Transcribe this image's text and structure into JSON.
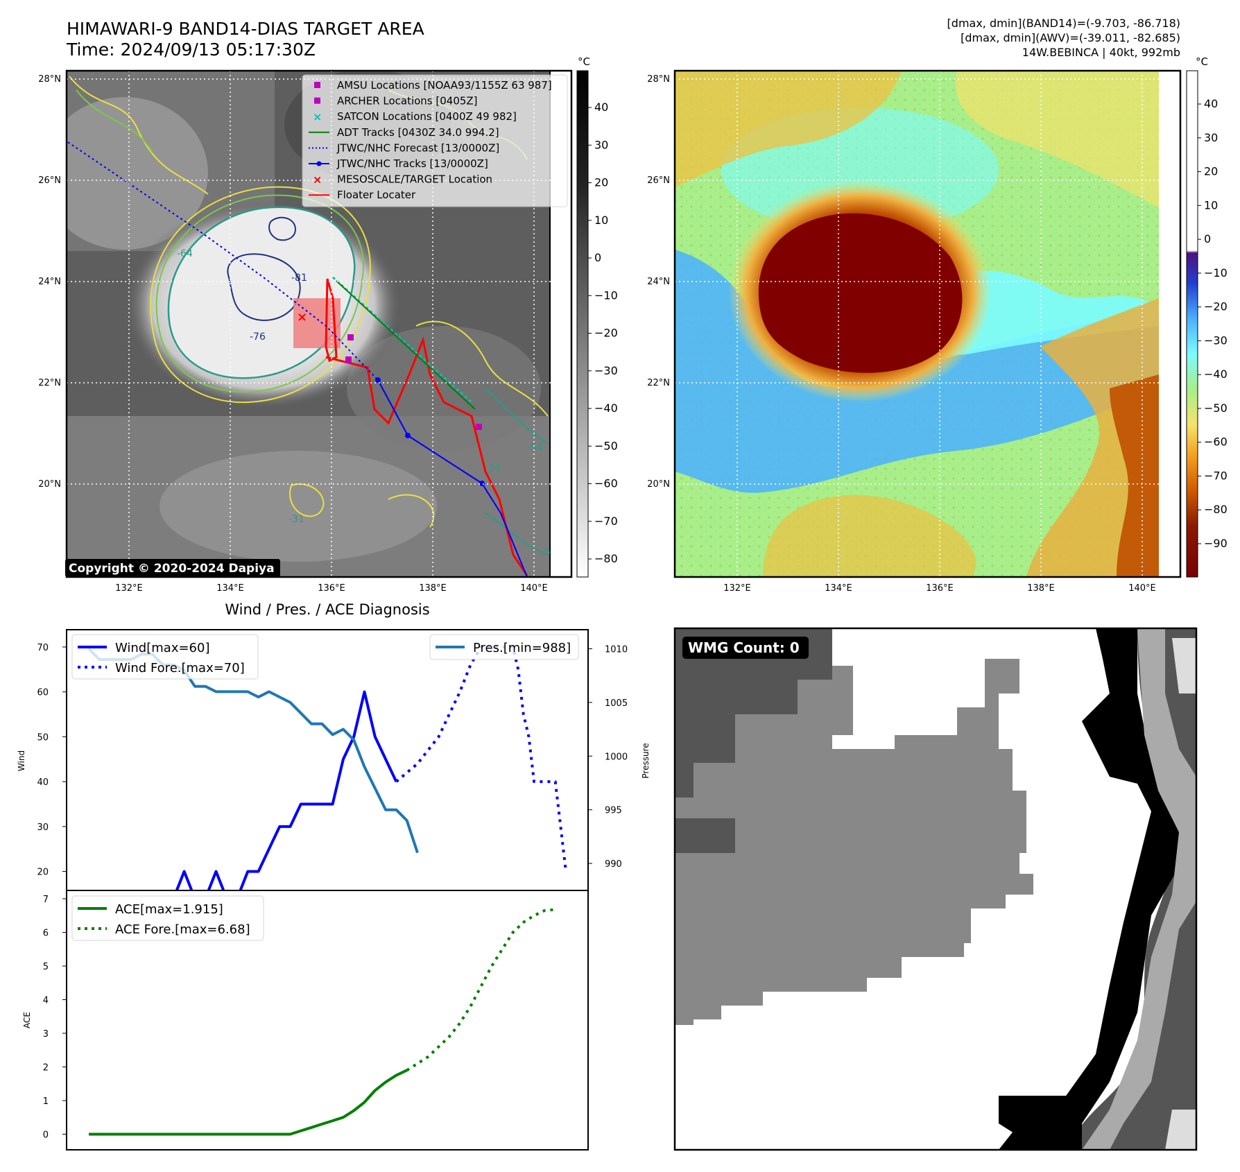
{
  "header": {
    "title_line1": "HIMAWARI-9 BAND14-DIAS TARGET AREA",
    "title_line2": "Time: 2024/09/13 05:17:30Z",
    "right_line1": "[dmax, dmin](BAND14)=(-9.703, -86.718)",
    "right_line2": "[dmax, dmin](AWV)=(-39.011, -82.685)",
    "right_line3": "14W.BEBINCA | 40kt, 992mb"
  },
  "ir_panel": {
    "copyright": "Copyright © 2020-2024 Dapiya",
    "lat_labels": [
      "28°N",
      "26°N",
      "24°N",
      "22°N",
      "20°N"
    ],
    "lon_labels": [
      "132°E",
      "134°E",
      "136°E",
      "138°E",
      "140°E"
    ],
    "contour_labels": [
      "-64",
      "-81",
      "-76",
      "-31",
      "-54",
      "-31",
      "-54"
    ],
    "colorbar": {
      "unit": "°C",
      "ticks": [
        "40",
        "30",
        "20",
        "10",
        "0",
        "−10",
        "−20",
        "−30",
        "−40",
        "−50",
        "−60",
        "−70",
        "−80"
      ]
    },
    "legend": [
      {
        "label": "AMSU Locations [NOAA93/1155Z 63 987]",
        "marker": "square",
        "color": "#c000c0"
      },
      {
        "label": "ARCHER Locations [0405Z]",
        "marker": "square",
        "color": "#c000c0"
      },
      {
        "label": "SATCON Locations [0400Z 49 982]",
        "marker": "x",
        "color": "#00c0c0"
      },
      {
        "label": "ADT Tracks [0430Z 34.0 994.2]",
        "marker": "line",
        "color": "#008000"
      },
      {
        "label": "JTWC/NHC Forecast [13/0000Z]",
        "marker": "dotted",
        "color": "#0000ff"
      },
      {
        "label": "JTWC/NHC Tracks [13/0000Z]",
        "marker": "line-dot",
        "color": "#0000ff"
      },
      {
        "label": "MESOSCALE/TARGET Location",
        "marker": "x",
        "color": "#ff0000"
      },
      {
        "label": "Floater Locater",
        "marker": "line",
        "color": "#ff0000"
      }
    ]
  },
  "awv_panel": {
    "lat_labels": [
      "28°N",
      "26°N",
      "24°N",
      "22°N",
      "20°N"
    ],
    "lon_labels": [
      "132°E",
      "134°E",
      "136°E",
      "138°E",
      "140°E"
    ],
    "colorbar": {
      "unit": "°C",
      "ticks": [
        "40",
        "30",
        "20",
        "10",
        "0",
        "−10",
        "−20",
        "−30",
        "−40",
        "−50",
        "−60",
        "−70",
        "−80",
        "−90"
      ]
    }
  },
  "wmg_panel": {
    "badge": "WMG Count: 0"
  },
  "chart_data": [
    {
      "type": "line",
      "title": "Wind / Pres. / ACE Diagnosis",
      "ylabel": "Wind",
      "y2label": "Pressure",
      "ylim": [
        17,
        72
      ],
      "y2lim": [
        988,
        1011
      ],
      "yticks": [
        "20",
        "30",
        "40",
        "50",
        "60",
        "70"
      ],
      "y2ticks": [
        "990",
        "995",
        "1000",
        "1005",
        "1010"
      ],
      "series": [
        {
          "name": "Wind[max=60]",
          "color": "#0000ff",
          "style": "solid",
          "values": [
            [
              0,
              14
            ],
            [
              8,
              14
            ],
            [
              9,
              20
            ],
            [
              10,
              14
            ],
            [
              11,
              14
            ],
            [
              12,
              20
            ],
            [
              13,
              14
            ],
            [
              14,
              14
            ],
            [
              15,
              20
            ],
            [
              16,
              20
            ],
            [
              17,
              25
            ],
            [
              18,
              30
            ],
            [
              19,
              30
            ],
            [
              20,
              35
            ],
            [
              21,
              35
            ],
            [
              22,
              35
            ],
            [
              23,
              35
            ],
            [
              24,
              45
            ],
            [
              25,
              50
            ],
            [
              26,
              60
            ],
            [
              27,
              50
            ],
            [
              28,
              45
            ],
            [
              29,
              40
            ]
          ]
        },
        {
          "name": "Wind Fore.[max=70]",
          "color": "#0000ff",
          "style": "dotted",
          "values": [
            [
              29,
              40
            ],
            [
              30,
              42
            ],
            [
              31,
              44
            ],
            [
              32,
              47
            ],
            [
              33,
              50
            ],
            [
              34,
              55
            ],
            [
              35,
              60
            ],
            [
              36,
              66
            ],
            [
              37,
              70
            ],
            [
              38,
              70
            ],
            [
              39,
              70
            ],
            [
              40,
              70
            ],
            [
              40.5,
              65
            ],
            [
              41,
              55
            ],
            [
              41.5,
              50
            ],
            [
              42,
              40
            ],
            [
              43,
              40
            ],
            [
              44,
              40
            ],
            [
              44.5,
              30
            ],
            [
              45,
              20
            ]
          ]
        }
      ],
      "series_y2": [
        {
          "name": "Pres.[min=988]",
          "color": "#1f77b4",
          "style": "solid",
          "values": [
            [
              0,
              1010
            ],
            [
              1,
              1009
            ],
            [
              2,
              1009
            ],
            [
              3,
              1009
            ],
            [
              4,
              1009
            ],
            [
              5,
              1009.5
            ],
            [
              6,
              1009.5
            ],
            [
              7,
              1008.5
            ],
            [
              8,
              1008.5
            ],
            [
              9,
              1008
            ],
            [
              10,
              1006.5
            ],
            [
              11,
              1006.5
            ],
            [
              12,
              1006
            ],
            [
              13,
              1006
            ],
            [
              14,
              1006
            ],
            [
              15,
              1006
            ],
            [
              16,
              1005.5
            ],
            [
              17,
              1006
            ],
            [
              18,
              1005.5
            ],
            [
              19,
              1005
            ],
            [
              20,
              1004
            ],
            [
              21,
              1003
            ],
            [
              22,
              1003
            ],
            [
              23,
              1002
            ],
            [
              24,
              1002.5
            ],
            [
              25,
              1001.5
            ],
            [
              26,
              999
            ],
            [
              27,
              997
            ],
            [
              28,
              995
            ],
            [
              29,
              995
            ],
            [
              30,
              994
            ],
            [
              31,
              991
            ]
          ]
        }
      ]
    },
    {
      "type": "line",
      "ylabel": "ACE",
      "ylim": [
        -0.3,
        7
      ],
      "yticks": [
        "0",
        "1",
        "2",
        "3",
        "4",
        "5",
        "6",
        "7"
      ],
      "series": [
        {
          "name": "ACE[max=1.915]",
          "color": "#008000",
          "style": "solid",
          "values": [
            [
              0,
              0
            ],
            [
              19,
              0
            ],
            [
              20,
              0.1
            ],
            [
              21,
              0.2
            ],
            [
              22,
              0.3
            ],
            [
              23,
              0.4
            ],
            [
              24,
              0.5
            ],
            [
              25,
              0.7
            ],
            [
              26,
              0.95
            ],
            [
              27,
              1.3
            ],
            [
              28,
              1.55
            ],
            [
              29,
              1.75
            ],
            [
              30,
              1.9
            ]
          ]
        },
        {
          "name": "ACE Fore.[max=6.68]",
          "color": "#008000",
          "style": "dotted",
          "values": [
            [
              30,
              1.9
            ],
            [
              31,
              2.1
            ],
            [
              32,
              2.3
            ],
            [
              33,
              2.6
            ],
            [
              34,
              2.9
            ],
            [
              35,
              3.3
            ],
            [
              36,
              3.8
            ],
            [
              37,
              4.4
            ],
            [
              38,
              5.0
            ],
            [
              39,
              5.5
            ],
            [
              40,
              6.0
            ],
            [
              41,
              6.3
            ],
            [
              42,
              6.5
            ],
            [
              43,
              6.65
            ],
            [
              44,
              6.68
            ]
          ]
        }
      ]
    }
  ]
}
